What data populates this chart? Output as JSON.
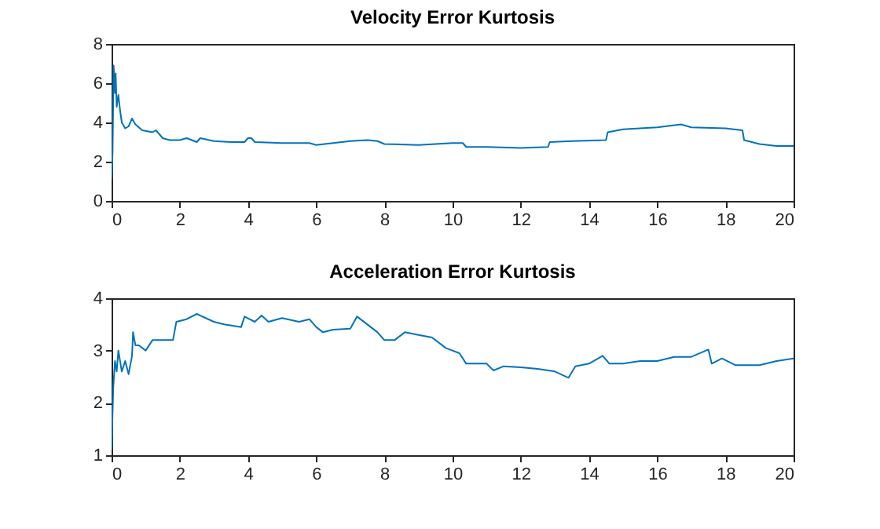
{
  "chart_data": [
    {
      "type": "line",
      "title": "Velocity Error Kurtosis",
      "x": [
        0,
        0.03,
        0.06,
        0.1,
        0.12,
        0.15,
        0.2,
        0.25,
        0.3,
        0.4,
        0.5,
        0.6,
        0.7,
        0.9,
        1.2,
        1.3,
        1.5,
        1.7,
        2,
        2.2,
        2.5,
        2.6,
        3,
        3.5,
        3.9,
        4.0,
        4.1,
        4.2,
        5,
        5.8,
        6,
        6.5,
        7,
        7.5,
        7.8,
        8,
        9,
        10,
        10.3,
        10.4,
        11,
        12,
        12.8,
        12.85,
        13.5,
        14.5,
        14.55,
        15,
        16,
        16.7,
        17,
        18,
        18.5,
        18.55,
        19,
        19.5,
        20
      ],
      "series": [
        {
          "color": "#0072bd",
          "values": [
            1.1,
            2.5,
            6.9,
            5.5,
            6.5,
            4.8,
            5.4,
            4.6,
            4.0,
            3.7,
            3.8,
            4.2,
            3.9,
            3.6,
            3.5,
            3.6,
            3.2,
            3.1,
            3.1,
            3.2,
            3.0,
            3.2,
            3.05,
            3.0,
            3.0,
            3.2,
            3.2,
            3.0,
            2.95,
            2.95,
            2.85,
            2.95,
            3.05,
            3.1,
            3.05,
            2.9,
            2.85,
            2.95,
            2.95,
            2.75,
            2.75,
            2.7,
            2.75,
            3.0,
            3.05,
            3.1,
            3.5,
            3.65,
            3.75,
            3.9,
            3.75,
            3.7,
            3.6,
            3.1,
            2.9,
            2.8,
            2.8
          ]
        }
      ],
      "xlim": [
        0,
        20
      ],
      "xticks": [
        0,
        2,
        4,
        6,
        8,
        10,
        12,
        14,
        16,
        18,
        20
      ],
      "ylim": [
        0,
        8
      ],
      "yticks": [
        0,
        2,
        4,
        6,
        8
      ],
      "grid": false
    },
    {
      "type": "line",
      "title": "Acceleration Error Kurtosis",
      "x": [
        0,
        0.05,
        0.1,
        0.15,
        0.2,
        0.3,
        0.4,
        0.5,
        0.6,
        0.63,
        0.7,
        0.8,
        1.0,
        1.2,
        1.5,
        1.8,
        1.9,
        2.2,
        2.5,
        3,
        3.3,
        3.8,
        3.9,
        4.2,
        4.4,
        4.6,
        5,
        5.5,
        5.8,
        6,
        6.2,
        6.5,
        7,
        7.2,
        7.5,
        7.8,
        8,
        8.3,
        8.6,
        9,
        9.4,
        9.8,
        10.2,
        10.4,
        11,
        11.2,
        11.5,
        12,
        12.5,
        13,
        13.4,
        13.6,
        14,
        14.4,
        14.6,
        15,
        15.5,
        16,
        16.5,
        17,
        17.5,
        17.6,
        17.9,
        18.3,
        19,
        19.5,
        20
      ],
      "series": [
        {
          "color": "#0072bd",
          "values": [
            1.1,
            2.3,
            2.8,
            2.6,
            3.0,
            2.6,
            2.8,
            2.55,
            2.9,
            3.35,
            3.1,
            3.1,
            3.0,
            3.2,
            3.2,
            3.2,
            3.55,
            3.6,
            3.7,
            3.55,
            3.5,
            3.45,
            3.65,
            3.55,
            3.67,
            3.55,
            3.62,
            3.55,
            3.6,
            3.45,
            3.35,
            3.4,
            3.42,
            3.65,
            3.5,
            3.35,
            3.2,
            3.2,
            3.35,
            3.3,
            3.25,
            3.05,
            2.95,
            2.75,
            2.75,
            2.62,
            2.7,
            2.68,
            2.65,
            2.6,
            2.48,
            2.7,
            2.75,
            2.9,
            2.75,
            2.75,
            2.8,
            2.8,
            2.88,
            2.88,
            3.02,
            2.75,
            2.85,
            2.72,
            2.72,
            2.8,
            2.85
          ]
        }
      ],
      "xlim": [
        0,
        20
      ],
      "xticks": [
        0,
        2,
        4,
        6,
        8,
        10,
        12,
        14,
        16,
        18,
        20
      ],
      "ylim": [
        1,
        4
      ],
      "yticks": [
        1,
        2,
        3,
        4
      ],
      "grid": false
    }
  ]
}
